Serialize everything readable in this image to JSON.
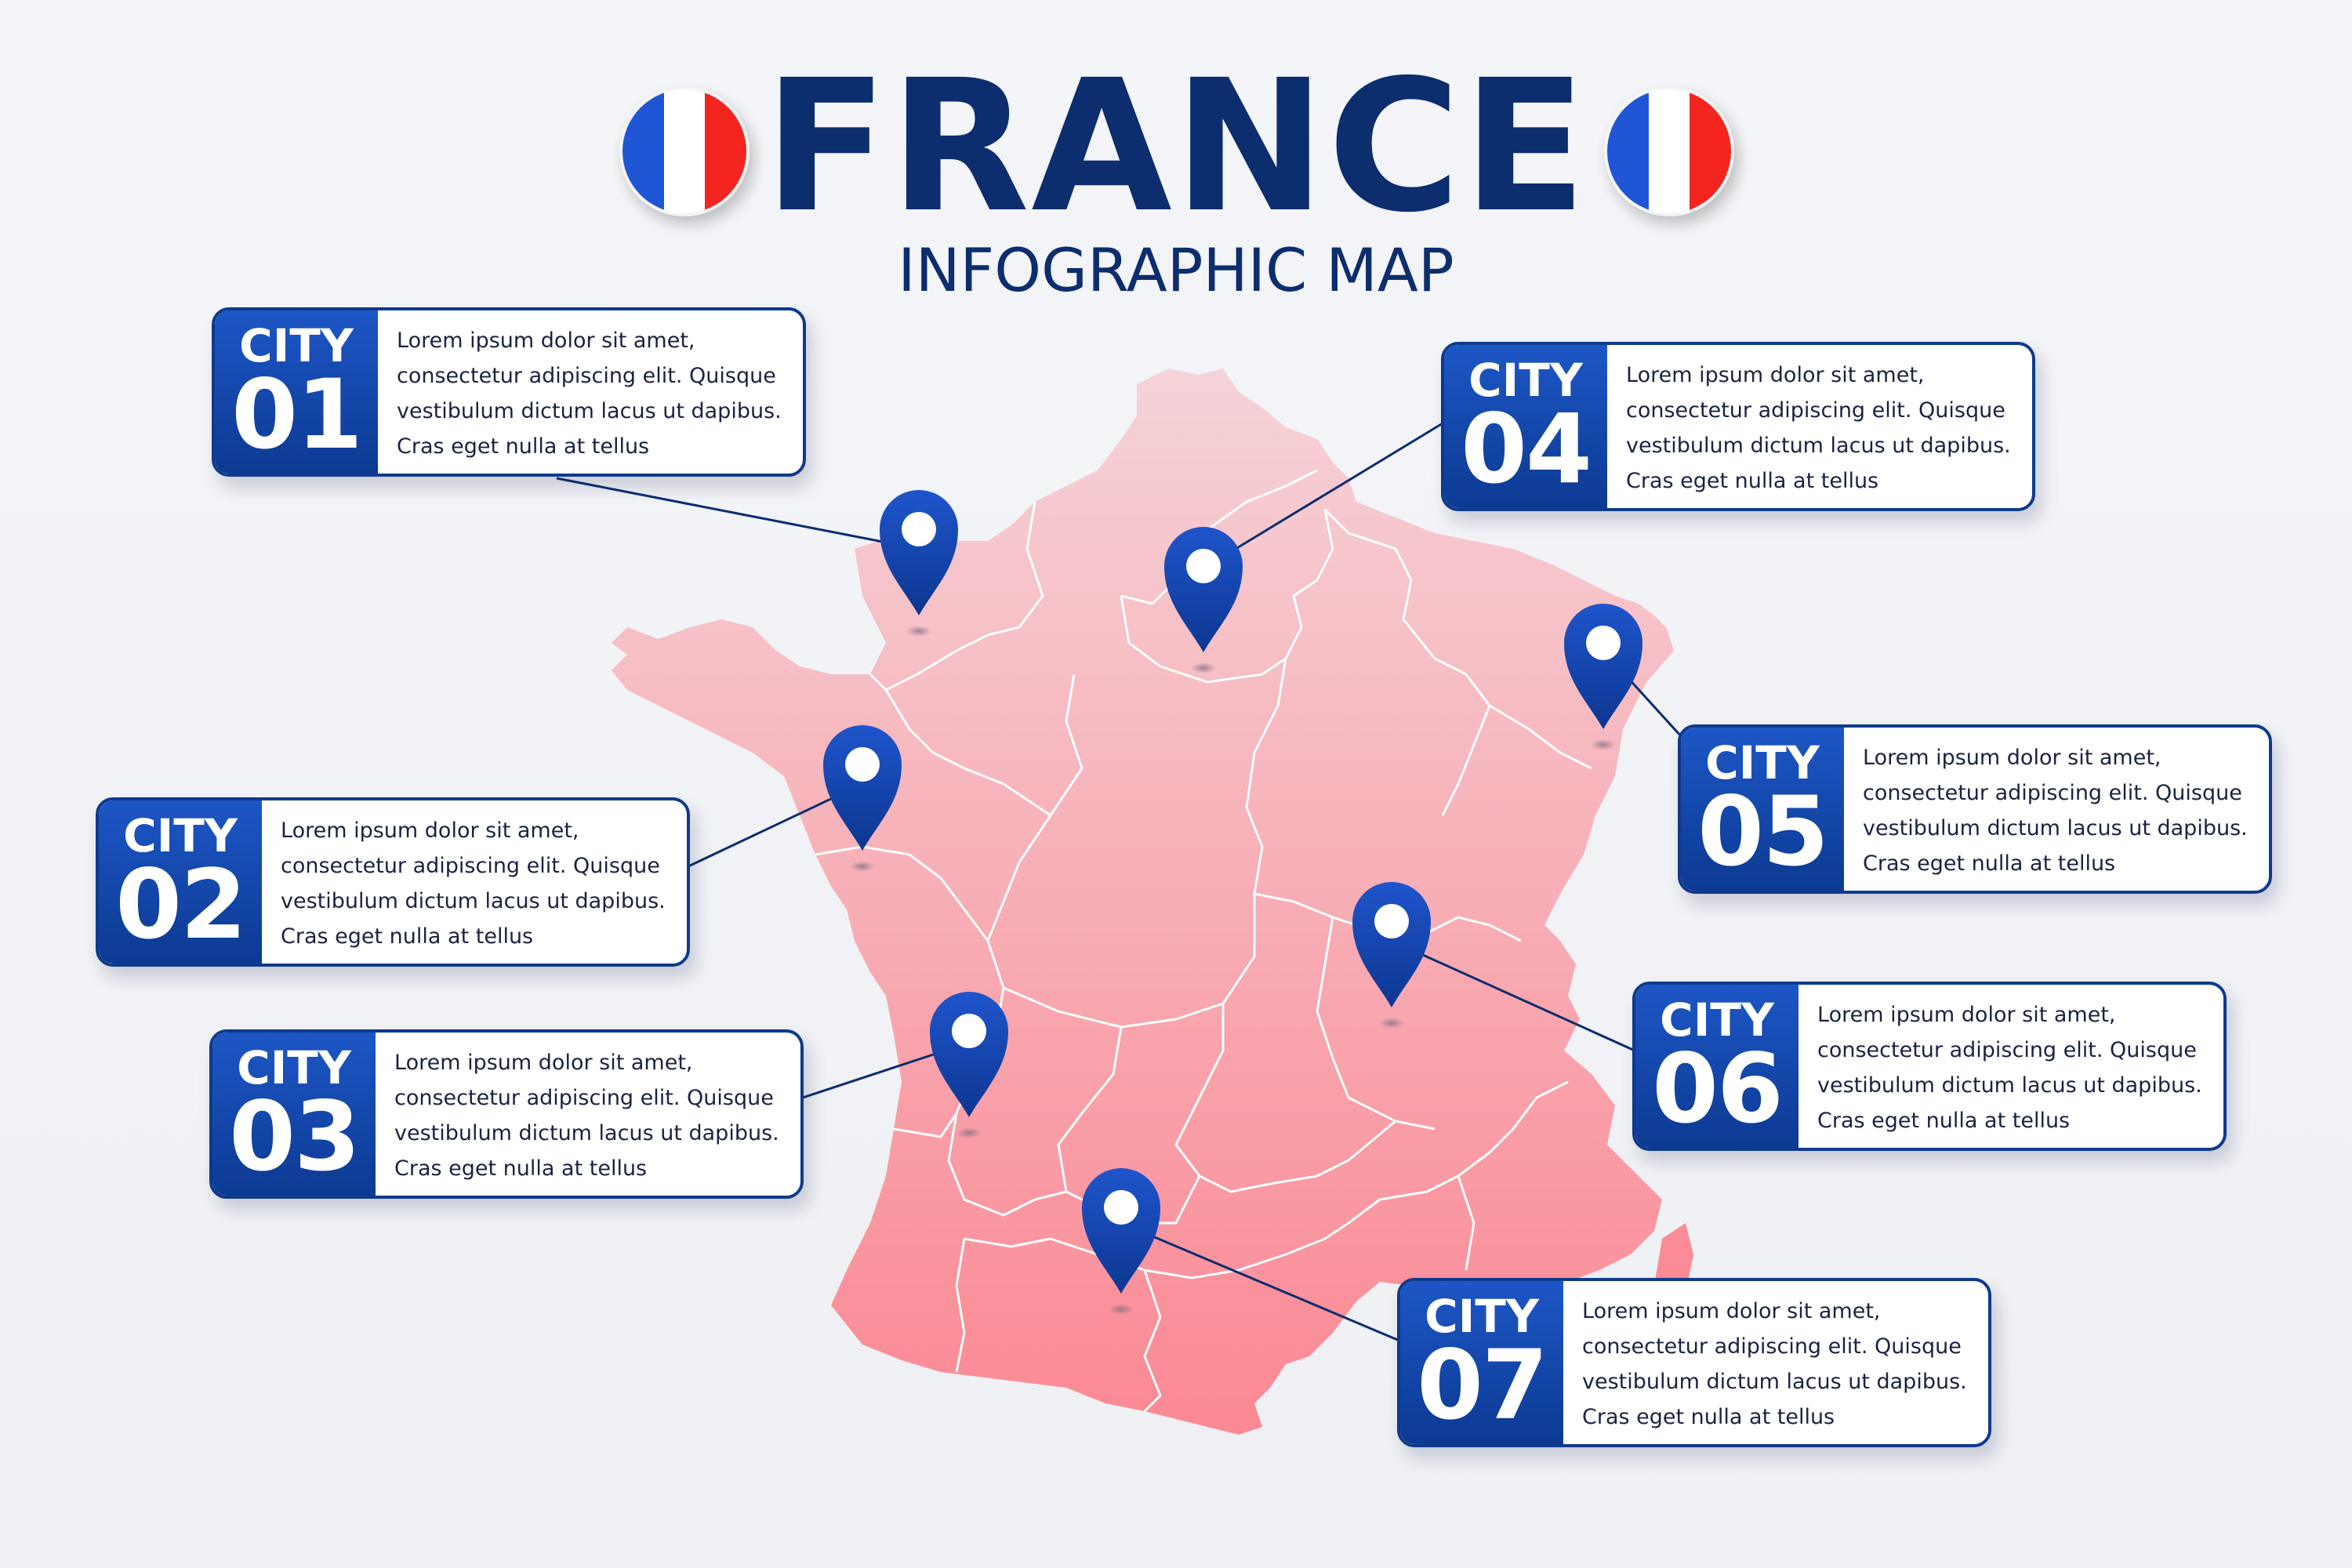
{
  "header": {
    "title": "FRANCE",
    "subtitle": "INFOGRAPHIC MAP"
  },
  "flag_colors": [
    "#1f56d6",
    "#ffffff",
    "#f4241e"
  ],
  "colors": {
    "navy": "#0c2d6e",
    "badge_blue": "#1d56c6",
    "map_pink_top": "#f5ccd3",
    "map_pink_bottom": "#fb8a96"
  },
  "cities": [
    {
      "word": "CITY",
      "number": "01",
      "text": "Lorem ipsum dolor sit amet,\nconsectetur adipiscing elit. Quisque\nvestibulum dictum lacus ut dapibus.\nCras eget nulla at tellus"
    },
    {
      "word": "CITY",
      "number": "02",
      "text": "Lorem ipsum dolor sit amet,\nconsectetur adipiscing elit. Quisque\nvestibulum dictum lacus ut dapibus.\nCras eget nulla at tellus"
    },
    {
      "word": "CITY",
      "number": "03",
      "text": "Lorem ipsum dolor sit amet,\nconsectetur adipiscing elit. Quisque\nvestibulum dictum lacus ut dapibus.\nCras eget nulla at tellus"
    },
    {
      "word": "CITY",
      "number": "04",
      "text": "Lorem ipsum dolor sit amet,\nconsectetur adipiscing elit. Quisque\nvestibulum dictum lacus ut dapibus.\nCras eget nulla at tellus"
    },
    {
      "word": "CITY",
      "number": "05",
      "text": "Lorem ipsum dolor sit amet,\nconsectetur adipiscing elit. Quisque\nvestibulum dictum lacus ut dapibus.\nCras eget nulla at tellus"
    },
    {
      "word": "CITY",
      "number": "06",
      "text": "Lorem ipsum dolor sit amet,\nconsectetur adipiscing elit. Quisque\nvestibulum dictum lacus ut dapibus.\nCras eget nulla at tellus"
    },
    {
      "word": "CITY",
      "number": "07",
      "text": "Lorem ipsum dolor sit amet,\nconsectetur adipiscing elit. Quisque\nvestibulum dictum lacus ut dapibus.\nCras eget nulla at tellus"
    }
  ]
}
